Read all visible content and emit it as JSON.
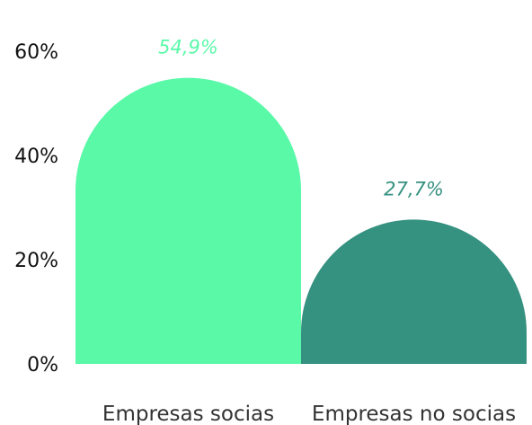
{
  "chart_data": {
    "type": "bar",
    "categories": [
      "Empresas socias",
      "Empresas no socias"
    ],
    "values": [
      54.9,
      27.7
    ],
    "value_labels": [
      "54,9%",
      "27,7%"
    ],
    "bar_colors": [
      "#59f9a8",
      "#359180"
    ],
    "label_colors": [
      "#59f9a8",
      "#359180"
    ],
    "yticks": [
      0,
      20,
      40,
      60
    ],
    "ytick_labels": [
      "0%",
      "20%",
      "40%",
      "60%"
    ],
    "ylim": [
      0,
      60
    ],
    "grid": false,
    "legend": "none",
    "title": "",
    "xlabel": "",
    "ylabel": ""
  }
}
